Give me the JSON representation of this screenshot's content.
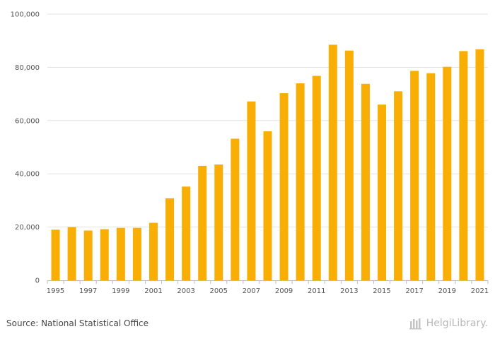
{
  "chart_data": {
    "type": "bar",
    "categories": [
      "1995",
      "1996",
      "1997",
      "1998",
      "1999",
      "2000",
      "2001",
      "2002",
      "2003",
      "2004",
      "2005",
      "2006",
      "2007",
      "2008",
      "2009",
      "2010",
      "2011",
      "2012",
      "2013",
      "2014",
      "2015",
      "2016",
      "2017",
      "2018",
      "2019",
      "2020",
      "2021"
    ],
    "values": [
      19000,
      20000,
      18700,
      19200,
      19700,
      19700,
      21600,
      30800,
      35200,
      43000,
      43500,
      53200,
      67200,
      56000,
      70300,
      74000,
      76800,
      88500,
      86300,
      73800,
      66000,
      71000,
      78700,
      77800,
      80200,
      86100,
      86800
    ],
    "x_tick_labels": [
      "1995",
      "1997",
      "1999",
      "2001",
      "2003",
      "2005",
      "2007",
      "2009",
      "2011",
      "2013",
      "2015",
      "2017",
      "2019",
      "2021"
    ],
    "y_tick_labels": [
      "0",
      "20,000",
      "40,000",
      "60,000",
      "80,000",
      "100,000"
    ],
    "ylim": [
      0,
      100000
    ],
    "title": "",
    "xlabel": "",
    "ylabel": "",
    "grid": true,
    "bar_color": "#F8AE04"
  },
  "footer": {
    "source": "Source: National Statistical Office",
    "brand": "HelgiLibrary."
  }
}
